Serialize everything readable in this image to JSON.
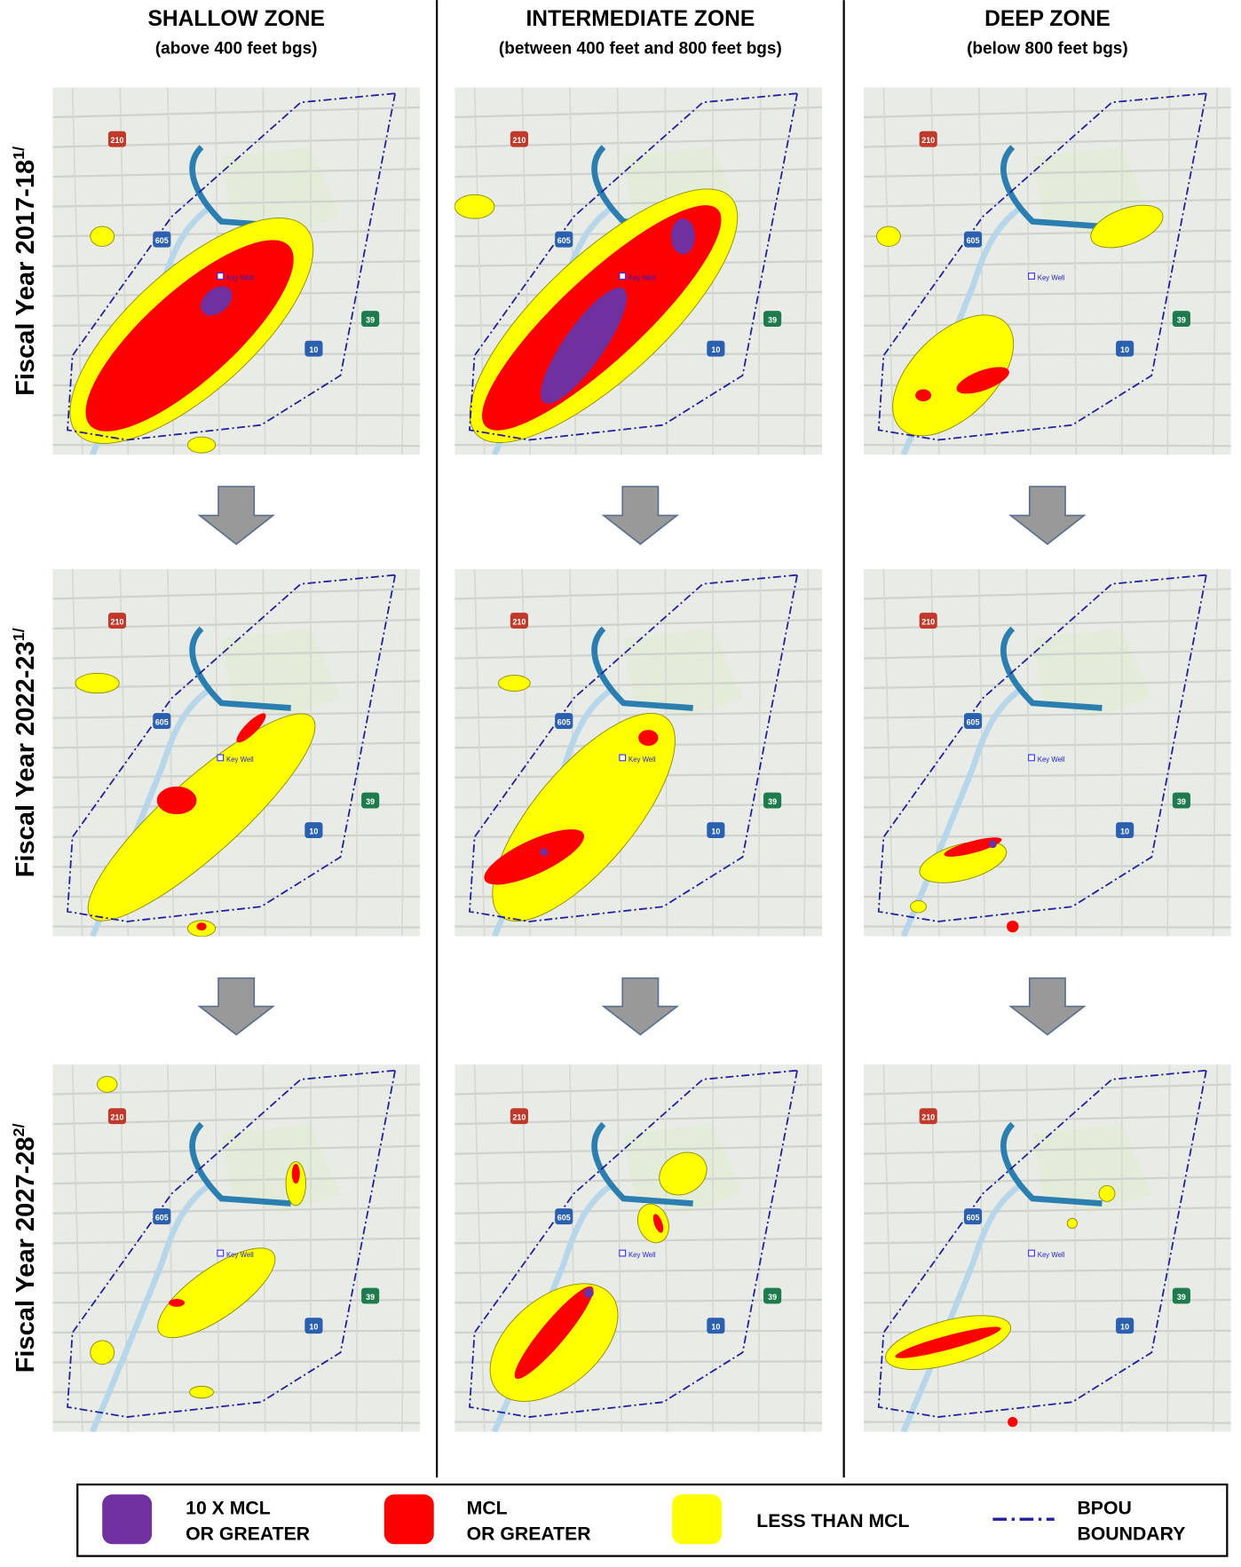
{
  "columns": [
    {
      "title": "SHALLOW ZONE",
      "subtitle": "(above 400 feet bgs)"
    },
    {
      "title": "INTERMEDIATE ZONE",
      "subtitle": "(between 400 feet and 800 feet bgs)"
    },
    {
      "title": "DEEP ZONE",
      "subtitle": "(below 800 feet bgs)"
    }
  ],
  "rows": [
    {
      "label": "Fiscal Year 2017-18",
      "note": "1/"
    },
    {
      "label": "Fiscal Year 2022-23",
      "note": "1/"
    },
    {
      "label": "Fiscal Year 2027-28",
      "note": "2/"
    }
  ],
  "map_labels": {
    "key_well": "Key Well",
    "shields": [
      "210",
      "605",
      "39",
      "10"
    ]
  },
  "legend": [
    {
      "lines": [
        "10 X MCL",
        "OR GREATER"
      ],
      "color": "#7030a0"
    },
    {
      "lines": [
        "MCL",
        "OR GREATER"
      ],
      "color": "#ff0000"
    },
    {
      "lines": [
        "LESS THAN MCL"
      ],
      "color": "#ffff00"
    },
    {
      "lines": [
        "BPOU",
        "BOUNDARY"
      ],
      "color": "#1f1fa0"
    }
  ]
}
